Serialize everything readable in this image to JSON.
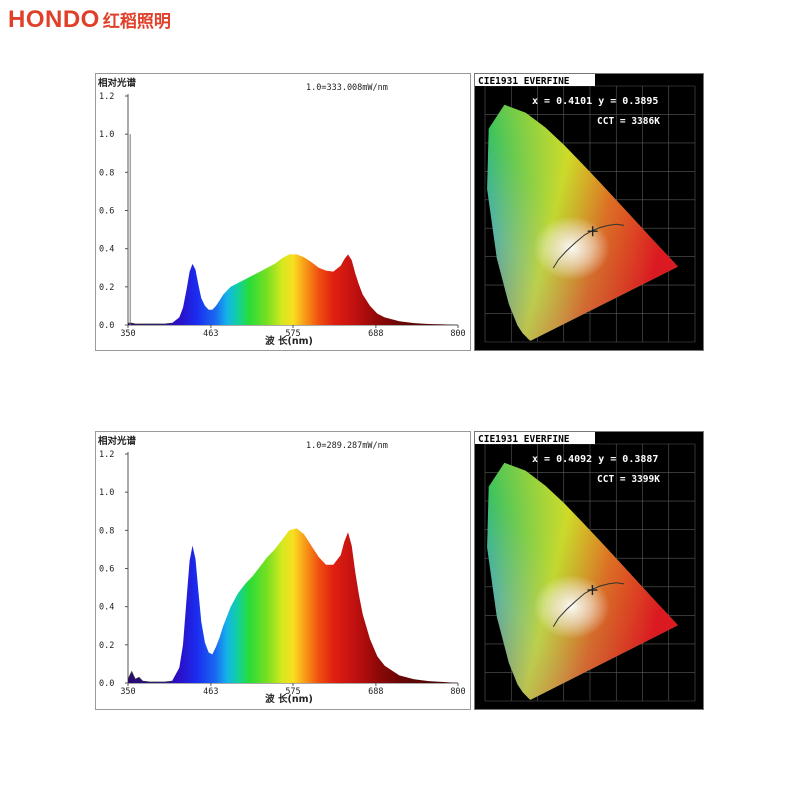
{
  "brand": {
    "name_en": "HONDO",
    "name_cn": "红稻照明",
    "color": "#e0402a"
  },
  "chart_data": [
    {
      "type": "area",
      "corner_label": "相对光谱",
      "annotation": "1.0=333.008mW/nm",
      "xlabel": "波 长(nm)",
      "xlim": [
        350,
        800
      ],
      "ylim": [
        0,
        1.2
      ],
      "xticks": [
        350,
        463,
        575,
        688,
        800
      ],
      "yticks": [
        0.0,
        0.2,
        0.4,
        0.6,
        0.8,
        1.0,
        1.2
      ],
      "ytick_labels": [
        "0.0",
        "0.2",
        "0.4",
        "0.6",
        "0.8",
        "1.0",
        "1.2"
      ],
      "grid": false,
      "fill": "visible-spectrum",
      "spike_x": 353,
      "spike_y": 1.0,
      "x": [
        350,
        355,
        360,
        380,
        400,
        410,
        420,
        425,
        430,
        434,
        438,
        442,
        446,
        450,
        455,
        460,
        465,
        470,
        475,
        480,
        490,
        500,
        510,
        520,
        530,
        540,
        550,
        560,
        570,
        580,
        590,
        600,
        610,
        620,
        630,
        640,
        645,
        650,
        655,
        660,
        665,
        670,
        680,
        690,
        700,
        720,
        740,
        760,
        780,
        800
      ],
      "y": [
        0.01,
        0.01,
        0.005,
        0.005,
        0.005,
        0.01,
        0.04,
        0.09,
        0.19,
        0.28,
        0.32,
        0.29,
        0.21,
        0.14,
        0.1,
        0.08,
        0.08,
        0.1,
        0.13,
        0.16,
        0.2,
        0.22,
        0.24,
        0.26,
        0.28,
        0.3,
        0.32,
        0.35,
        0.37,
        0.37,
        0.355,
        0.33,
        0.3,
        0.285,
        0.28,
        0.31,
        0.345,
        0.37,
        0.34,
        0.27,
        0.21,
        0.16,
        0.1,
        0.06,
        0.04,
        0.02,
        0.01,
        0.005,
        0.003,
        0.0
      ]
    },
    {
      "type": "area",
      "corner_label": "相对光谱",
      "annotation": "1.0=289.287mW/nm",
      "xlabel": "波 长(nm)",
      "xlim": [
        350,
        800
      ],
      "ylim": [
        0,
        1.2
      ],
      "xticks": [
        350,
        463,
        575,
        688,
        800
      ],
      "yticks": [
        0.0,
        0.2,
        0.4,
        0.6,
        0.8,
        1.0,
        1.2
      ],
      "ytick_labels": [
        "0.0",
        "0.2",
        "0.4",
        "0.6",
        "0.8",
        "1.0",
        "1.2"
      ],
      "grid": false,
      "fill": "visible-spectrum",
      "x": [
        350,
        355,
        360,
        365,
        370,
        380,
        400,
        410,
        420,
        425,
        430,
        434,
        438,
        442,
        446,
        450,
        455,
        460,
        465,
        470,
        475,
        480,
        490,
        500,
        510,
        520,
        530,
        540,
        550,
        560,
        570,
        580,
        590,
        600,
        610,
        620,
        630,
        640,
        645,
        650,
        655,
        660,
        665,
        670,
        680,
        690,
        700,
        720,
        740,
        760,
        780,
        800
      ],
      "y": [
        0.02,
        0.06,
        0.02,
        0.03,
        0.01,
        0.005,
        0.005,
        0.01,
        0.08,
        0.2,
        0.45,
        0.64,
        0.72,
        0.65,
        0.48,
        0.32,
        0.21,
        0.16,
        0.15,
        0.19,
        0.24,
        0.3,
        0.4,
        0.47,
        0.52,
        0.56,
        0.61,
        0.66,
        0.7,
        0.75,
        0.8,
        0.81,
        0.78,
        0.72,
        0.66,
        0.62,
        0.62,
        0.67,
        0.74,
        0.79,
        0.72,
        0.58,
        0.46,
        0.36,
        0.23,
        0.14,
        0.09,
        0.04,
        0.02,
        0.01,
        0.005,
        0.0
      ]
    },
    {
      "type": "scatter",
      "title": "CIE1931 EVERFINE",
      "coords_label": "x = 0.4101 y = 0.3895",
      "cct_label": "CCT = 3386K",
      "x": [
        0.4101
      ],
      "y": [
        0.3895
      ],
      "cct": 3386,
      "xlim": [
        0,
        0.8
      ],
      "ylim": [
        0,
        0.9
      ]
    },
    {
      "type": "scatter",
      "title": "CIE1931 EVERFINE",
      "coords_label": "x = 0.4092 y = 0.3887",
      "cct_label": "CCT = 3399K",
      "x": [
        0.4092
      ],
      "y": [
        0.3887
      ],
      "cct": 3399,
      "xlim": [
        0,
        0.8
      ],
      "ylim": [
        0,
        0.9
      ]
    }
  ]
}
